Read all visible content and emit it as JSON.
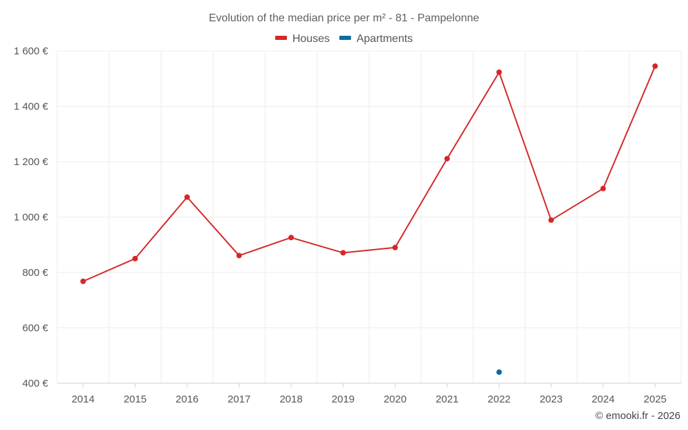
{
  "chart_data": {
    "type": "line",
    "title": "Evolution of the median price per m² - 81 - Pampelonne",
    "categories": [
      "2014",
      "2015",
      "2016",
      "2017",
      "2018",
      "2019",
      "2020",
      "2021",
      "2022",
      "2023",
      "2024",
      "2025"
    ],
    "series": [
      {
        "name": "Houses",
        "color": "#d62728",
        "values": [
          768,
          850,
          1072,
          861,
          926,
          871,
          890,
          1211,
          1523,
          989,
          1103,
          1545
        ]
      },
      {
        "name": "Apartments",
        "color": "#0e6a9e",
        "values": [
          null,
          null,
          null,
          null,
          null,
          null,
          null,
          null,
          440,
          null,
          null,
          null
        ]
      }
    ],
    "ylim": [
      400,
      1600
    ],
    "yticks": [
      400,
      600,
      800,
      1000,
      1200,
      1400,
      1600
    ],
    "ytick_labels": [
      "400 €",
      "600 €",
      "800 €",
      "1 000 €",
      "1 200 €",
      "1 400 €",
      "1 600 €"
    ],
    "xlabel": "",
    "ylabel": "",
    "grid": true,
    "legend_position": "top-center"
  },
  "credit": "© emooki.fr - 2026"
}
